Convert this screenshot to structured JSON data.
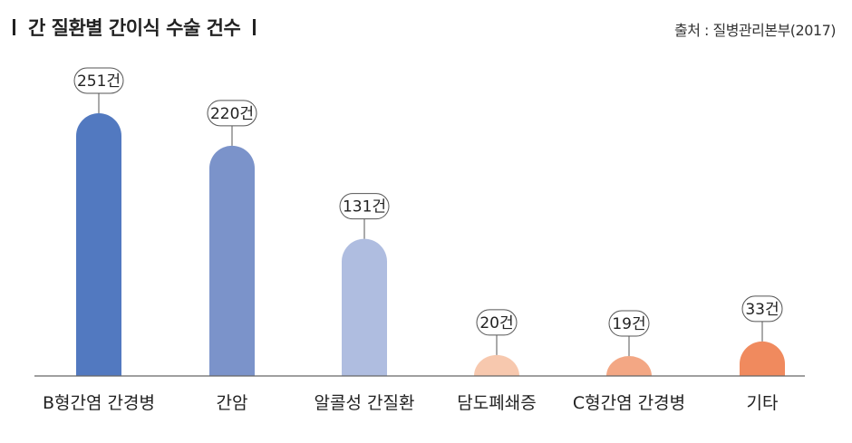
{
  "header": {
    "title": "간 질환별 간이식 수술 건수",
    "source": "출처 : 질병관리본부(2017)"
  },
  "chart_data": {
    "type": "bar",
    "title": "간 질환별 간이식 수술 건수",
    "categories": [
      "B형간염 간경병",
      "간암",
      "알콜성 간질환",
      "담도폐쇄증",
      "C형간염 간경병",
      "기타"
    ],
    "values": [
      251,
      220,
      131,
      20,
      19,
      33
    ],
    "data_labels": [
      "251건",
      "220건",
      "131건",
      "20건",
      "19건",
      "33건"
    ],
    "colors": [
      "#5279c0",
      "#7b93ca",
      "#afbde0",
      "#f7c8ae",
      "#f3a784",
      "#f08a5e"
    ],
    "ylim": [
      0,
      251
    ],
    "grid": false,
    "legend": "none"
  }
}
